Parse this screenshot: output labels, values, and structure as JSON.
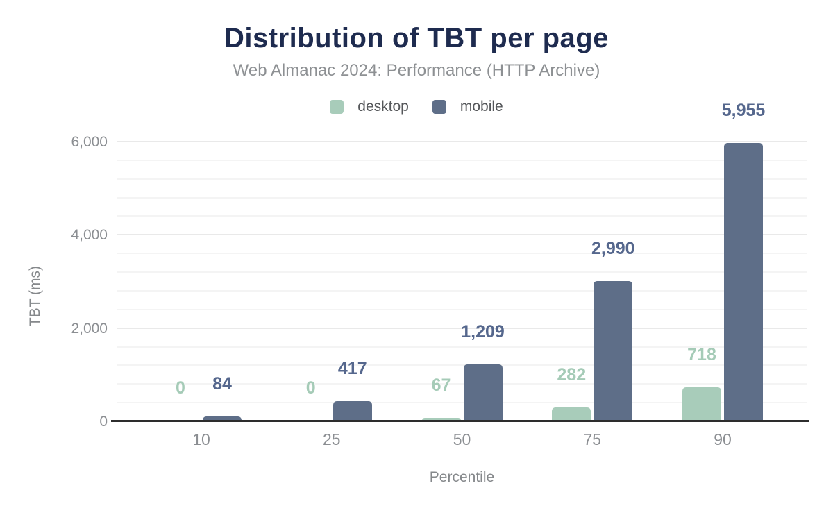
{
  "chart_data": {
    "type": "bar",
    "title": "Distribution of TBT per page",
    "subtitle": "Web Almanac 2024: Performance (HTTP Archive)",
    "xlabel": "Percentile",
    "ylabel": "TBT (ms)",
    "categories": [
      "10",
      "25",
      "50",
      "75",
      "90"
    ],
    "series": [
      {
        "name": "desktop",
        "color": "#a8ccba",
        "label_color": "#a5cbb7",
        "values": [
          0,
          0,
          67,
          282,
          718
        ],
        "value_labels": [
          "0",
          "0",
          "67",
          "282",
          "718"
        ]
      },
      {
        "name": "mobile",
        "color": "#5e6e88",
        "label_color": "#55678d",
        "values": [
          84,
          417,
          1209,
          2990,
          5955
        ],
        "value_labels": [
          "84",
          "417",
          "1,209",
          "2,990",
          "5,955"
        ]
      }
    ],
    "ylim": [
      0,
      6000
    ],
    "yticks": [
      {
        "value": 0,
        "label": "0"
      },
      {
        "value": 2000,
        "label": "2,000"
      },
      {
        "value": 4000,
        "label": "4,000"
      },
      {
        "value": 6000,
        "label": "6,000"
      }
    ],
    "minor_grid_step": 400,
    "major_grid_step": 2000,
    "grid": true,
    "legend_position": "top"
  },
  "colors": {
    "title": "#1e2b4f",
    "subtitle": "#8d9093",
    "legend_text": "#55575a",
    "tick_text": "#8b8e92",
    "axis_title_text": "#85888b",
    "axis_line": "#2d2d2d",
    "grid_minor": "#f4f4f4",
    "grid_major": "#e9e9e9",
    "background": "#ffffff"
  }
}
